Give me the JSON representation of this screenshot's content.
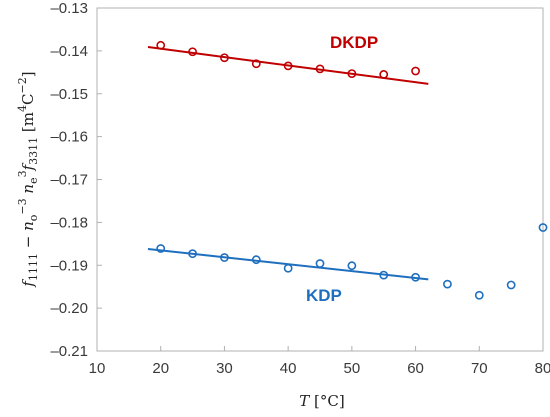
{
  "chart_data": {
    "type": "scatter",
    "x_axis": {
      "label_var": "T",
      "label_unit": " [°C]",
      "range": [
        10,
        80
      ],
      "ticks": [
        10,
        20,
        30,
        40,
        50,
        60,
        70,
        80
      ],
      "tick_labels": [
        "10",
        "20",
        "30",
        "40",
        "50",
        "60",
        "70",
        "80"
      ]
    },
    "y_axis": {
      "label": "f1111 − no−3 ne3 f3311 [m4 C−2]",
      "range": [
        -0.21,
        -0.13
      ],
      "ticks": [
        -0.21,
        -0.2,
        -0.19,
        -0.18,
        -0.17,
        -0.16,
        -0.15,
        -0.14,
        -0.13
      ],
      "tick_labels": [
        "–0.21",
        "–0.20",
        "–0.19",
        "–0.18",
        "–0.17",
        "–0.16",
        "–0.15",
        "–0.14",
        "–0.13"
      ]
    },
    "grid": false,
    "series": [
      {
        "name": "DKDP",
        "color": "#c00000",
        "marker": "open-circle",
        "points": [
          {
            "x": 20,
            "y": -0.1387
          },
          {
            "x": 25,
            "y": -0.1402
          },
          {
            "x": 30,
            "y": -0.1416
          },
          {
            "x": 35,
            "y": -0.143
          },
          {
            "x": 40,
            "y": -0.1435
          },
          {
            "x": 45,
            "y": -0.1442
          },
          {
            "x": 50,
            "y": -0.1453
          },
          {
            "x": 55,
            "y": -0.1455
          },
          {
            "x": 60,
            "y": -0.1447
          }
        ],
        "fit": {
          "x": [
            18,
            62
          ],
          "y": [
            -0.1391,
            -0.1477
          ]
        }
      },
      {
        "name": "KDP",
        "color": "#1f6fbf",
        "marker": "open-circle",
        "points": [
          {
            "x": 20,
            "y": -0.1861
          },
          {
            "x": 25,
            "y": -0.1873
          },
          {
            "x": 30,
            "y": -0.1882
          },
          {
            "x": 35,
            "y": -0.1887
          },
          {
            "x": 40,
            "y": -0.1907
          },
          {
            "x": 45,
            "y": -0.1896
          },
          {
            "x": 50,
            "y": -0.1901
          },
          {
            "x": 55,
            "y": -0.1923
          },
          {
            "x": 60,
            "y": -0.1928
          },
          {
            "x": 65,
            "y": -0.1944
          },
          {
            "x": 70,
            "y": -0.197
          },
          {
            "x": 75,
            "y": -0.1946
          },
          {
            "x": 80,
            "y": -0.1812
          }
        ],
        "fit": {
          "x": [
            18,
            62
          ],
          "y": [
            -0.1862,
            -0.1933
          ]
        }
      }
    ]
  }
}
